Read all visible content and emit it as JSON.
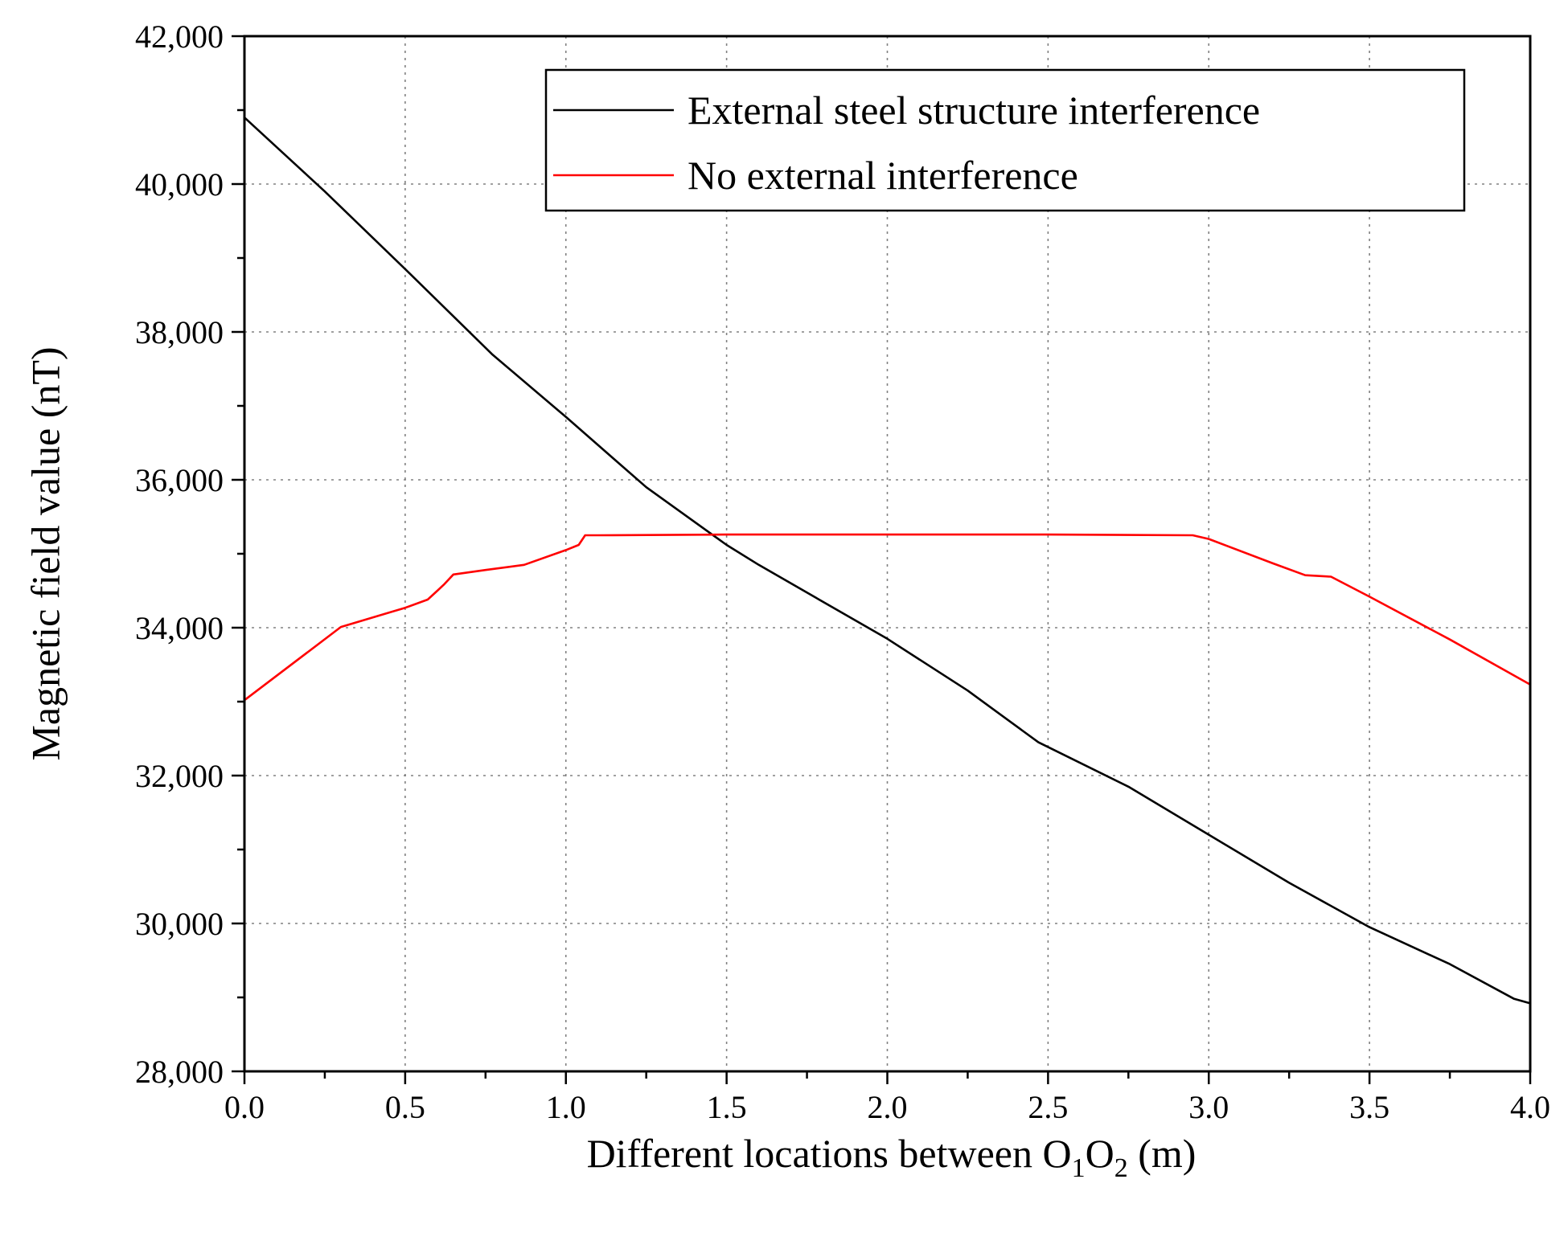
{
  "chart_data": {
    "type": "line",
    "xlabel": "Different locations between O1O2 (m)",
    "xlabel_parts": [
      "Different locations between O",
      "1",
      "O",
      "2",
      " (m)"
    ],
    "ylabel": "Magnetic field value (nT)",
    "xlim": [
      0,
      4
    ],
    "ylim": [
      28000,
      42000
    ],
    "x_ticks": [
      0,
      0.5,
      1,
      1.5,
      2,
      2.5,
      3,
      3.5,
      4
    ],
    "x_tick_labels": [
      "0.0",
      "0.5",
      "1.0",
      "1.5",
      "2.0",
      "2.5",
      "3.0",
      "3.5",
      "4.0"
    ],
    "y_ticks": [
      28000,
      30000,
      32000,
      34000,
      36000,
      38000,
      40000,
      42000
    ],
    "y_tick_labels": [
      "28,000",
      "30,000",
      "32,000",
      "34,000",
      "36,000",
      "38,000",
      "40,000",
      "42,000"
    ],
    "grid": true,
    "legend_position": "top-right",
    "series": [
      {
        "name": "External steel structure interference",
        "color": "#000000",
        "x": [
          0,
          0.25,
          0.5,
          0.77,
          1.0,
          1.25,
          1.5,
          1.6,
          2.0,
          2.25,
          2.47,
          2.75,
          3.0,
          3.25,
          3.5,
          3.75,
          3.95,
          4.0
        ],
        "y": [
          40900,
          39900,
          38850,
          37700,
          36850,
          35900,
          35120,
          34850,
          33850,
          33150,
          32450,
          31850,
          31200,
          30550,
          29950,
          29450,
          28980,
          28920
        ]
      },
      {
        "name": "No external interference",
        "color": "#ff0000",
        "x": [
          0,
          0.3,
          0.5,
          0.57,
          0.6,
          0.62,
          0.65,
          0.75,
          0.87,
          1.0,
          1.04,
          1.06,
          1.1,
          1.5,
          2.0,
          2.5,
          2.95,
          3.0,
          3.2,
          3.3,
          3.38,
          3.5,
          3.75,
          4.0
        ],
        "y": [
          33020,
          34010,
          34270,
          34380,
          34500,
          34580,
          34720,
          34780,
          34850,
          35050,
          35120,
          35250,
          35250,
          35260,
          35260,
          35260,
          35250,
          35200,
          34870,
          34710,
          34690,
          34420,
          33840,
          33230
        ]
      }
    ]
  }
}
